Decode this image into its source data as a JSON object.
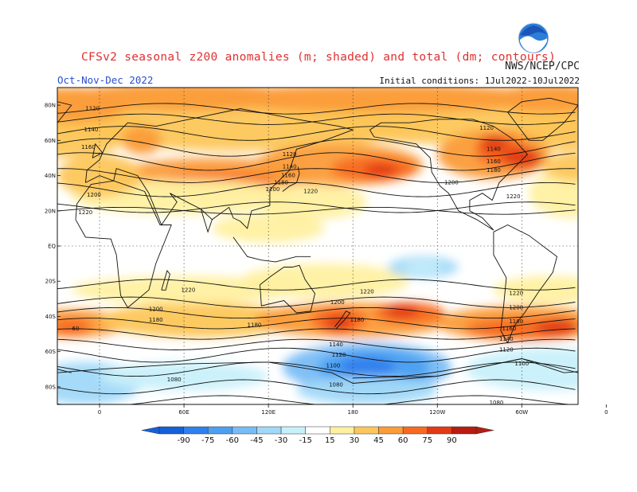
{
  "title": "CFSv2 seasonal z200 anomalies (m; shaded) and total (dm; contours)",
  "season": "Oct-Nov-Dec 2022",
  "agency": "NWS/NCEP/CPC",
  "initial_conditions": "Initial conditions: 1Jul2022-10Jul2022",
  "logo_text": "NOAA",
  "map": {
    "lon_ticks": [
      "0",
      "60E",
      "120E",
      "180",
      "120W",
      "60W",
      "0"
    ],
    "lat_ticks": [
      "80N",
      "60N",
      "40N",
      "20N",
      "EQ",
      "20S",
      "40S",
      "60S",
      "80S"
    ],
    "contour_labels": [
      {
        "text": "1120",
        "lon": -5,
        "lat": 78
      },
      {
        "text": "1140",
        "lon": -6,
        "lat": 66
      },
      {
        "text": "1160",
        "lon": -8,
        "lat": 56
      },
      {
        "text": "1120",
        "lon": 135,
        "lat": 52
      },
      {
        "text": "1140",
        "lon": 135,
        "lat": 45
      },
      {
        "text": "1160",
        "lon": 134,
        "lat": 40
      },
      {
        "text": "1180",
        "lon": 129,
        "lat": 36
      },
      {
        "text": "1200",
        "lon": 123,
        "lat": 32
      },
      {
        "text": "1220",
        "lon": 150,
        "lat": 31
      },
      {
        "text": "1200",
        "lon": -4,
        "lat": 29
      },
      {
        "text": "1220",
        "lon": -10,
        "lat": 19
      },
      {
        "text": "1120",
        "lon": 275,
        "lat": 67
      },
      {
        "text": "1140",
        "lon": 280,
        "lat": 55
      },
      {
        "text": "1160",
        "lon": 280,
        "lat": 48
      },
      {
        "text": "1180",
        "lon": 280,
        "lat": 43
      },
      {
        "text": "1200",
        "lon": 250,
        "lat": 36
      },
      {
        "text": "1220",
        "lon": 294,
        "lat": 28
      },
      {
        "text": "1220",
        "lon": 63,
        "lat": -25
      },
      {
        "text": "1200",
        "lon": 40,
        "lat": -36
      },
      {
        "text": "1180",
        "lon": 40,
        "lat": -42
      },
      {
        "text": "1180",
        "lon": 110,
        "lat": -45
      },
      {
        "text": "1200",
        "lon": 169,
        "lat": -32
      },
      {
        "text": "1220",
        "lon": 190,
        "lat": -26
      },
      {
        "text": "1180",
        "lon": 183,
        "lat": -42
      },
      {
        "text": "1140",
        "lon": 168,
        "lat": -56
      },
      {
        "text": "1120",
        "lon": 170,
        "lat": -62
      },
      {
        "text": "1100",
        "lon": 166,
        "lat": -68
      },
      {
        "text": "1080",
        "lon": 168,
        "lat": -79
      },
      {
        "text": "1080",
        "lon": 53,
        "lat": -76
      },
      {
        "text": "1220",
        "lon": 296,
        "lat": -27
      },
      {
        "text": "1200",
        "lon": 296,
        "lat": -35
      },
      {
        "text": "1180",
        "lon": 296,
        "lat": -43
      },
      {
        "text": "1160",
        "lon": 291,
        "lat": -47
      },
      {
        "text": "1140",
        "lon": 289,
        "lat": -53
      },
      {
        "text": "1120",
        "lon": 289,
        "lat": -59
      },
      {
        "text": "1100",
        "lon": 300,
        "lat": -67
      },
      {
        "text": "1080",
        "lon": 282,
        "lat": -89
      },
      {
        "text": "60",
        "lon": -17,
        "lat": -47
      }
    ]
  },
  "colorbar": {
    "labels": [
      "-90",
      "-75",
      "-60",
      "-45",
      "-30",
      "-15",
      "15",
      "30",
      "45",
      "60",
      "75",
      "90"
    ],
    "colors": [
      "#1460d8",
      "#2e80ec",
      "#4ca0f2",
      "#78bcf5",
      "#a0d8f8",
      "#c8f0fa",
      "#ffffff",
      "#fff0a0",
      "#fdc65a",
      "#fb9c3a",
      "#f86a22",
      "#e23a14",
      "#b81c10"
    ]
  }
}
